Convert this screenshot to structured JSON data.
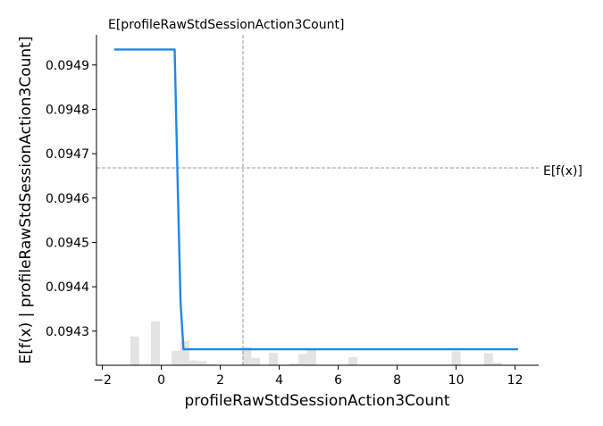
{
  "chart_data": {
    "type": "line",
    "title": "",
    "xlabel": "profileRawStdSessionAction3Count",
    "ylabel": "E[f(x) | profileRawStdSessionAction3Count]",
    "xlim": [
      -2.2,
      12.8
    ],
    "ylim": [
      0.094223,
      0.094968
    ],
    "xticks": [
      -2,
      0,
      2,
      4,
      6,
      8,
      10,
      12
    ],
    "yticks": [
      0.0943,
      0.0944,
      0.0945,
      0.0946,
      0.0947,
      0.0948,
      0.0949
    ],
    "ytick_labels": [
      "0.0943",
      "0.0944",
      "0.0945",
      "0.0946",
      "0.0947",
      "0.0948",
      "0.0949"
    ],
    "grid": false,
    "series": [
      {
        "color": "#1e88e5",
        "x": [
          -1.6,
          -1.2,
          -0.8,
          -0.4,
          0.0,
          0.35,
          0.45,
          0.55,
          0.65,
          0.75,
          1.0,
          2.0,
          4.0,
          6.0,
          8.0,
          10.0,
          12.1
        ],
        "y": [
          0.094935,
          0.094935,
          0.094935,
          0.094935,
          0.094935,
          0.094935,
          0.094935,
          0.09464,
          0.094366,
          0.094259,
          0.094259,
          0.094259,
          0.094259,
          0.094259,
          0.094259,
          0.094259,
          0.094259
        ]
      }
    ],
    "histogram": {
      "color": "#cccccc",
      "bins": [
        {
          "x0": -1.55,
          "x1": -1.05,
          "count": 0
        },
        {
          "x0": -1.05,
          "x1": -0.75,
          "count": 0.95
        },
        {
          "x0": -0.35,
          "x1": -0.05,
          "count": 1.45
        },
        {
          "x0": 0.35,
          "x1": 0.65,
          "count": 0.48
        },
        {
          "x0": 0.65,
          "x1": 0.95,
          "count": 0.8
        },
        {
          "x0": 0.95,
          "x1": 1.25,
          "count": 0.16
        },
        {
          "x0": 1.25,
          "x1": 1.55,
          "count": 0.14
        },
        {
          "x0": 1.55,
          "x1": 1.85,
          "count": 0.04
        },
        {
          "x0": 2.75,
          "x1": 3.05,
          "count": 0.6
        },
        {
          "x0": 3.05,
          "x1": 3.35,
          "count": 0.24
        },
        {
          "x0": 3.65,
          "x1": 3.95,
          "count": 0.41
        },
        {
          "x0": 4.35,
          "x1": 4.65,
          "count": 0.06
        },
        {
          "x0": 4.65,
          "x1": 4.95,
          "count": 0.37
        },
        {
          "x0": 4.95,
          "x1": 5.25,
          "count": 0.52
        },
        {
          "x0": 6.35,
          "x1": 6.65,
          "count": 0.27
        },
        {
          "x0": 9.85,
          "x1": 10.15,
          "count": 0.46
        },
        {
          "x0": 10.95,
          "x1": 11.25,
          "count": 0.4
        },
        {
          "x0": 11.25,
          "x1": 11.55,
          "count": 0.09
        }
      ]
    },
    "reference_lines": {
      "expected_x_value": 2.77,
      "expected_y_value": 0.094668,
      "expected_x_label": "E[profileRawStdSessionAction3Count]",
      "expected_y_label": "E[f(x)]",
      "color": "#999999"
    }
  }
}
